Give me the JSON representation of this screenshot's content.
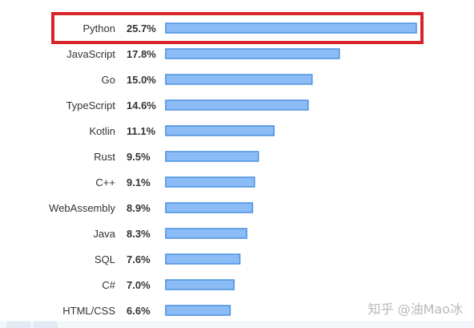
{
  "chart_data": {
    "type": "bar",
    "orientation": "horizontal",
    "categories": [
      "Python",
      "JavaScript",
      "Go",
      "TypeScript",
      "Kotlin",
      "Rust",
      "C++",
      "WebAssembly",
      "Java",
      "SQL",
      "C#",
      "HTML/CSS"
    ],
    "values": [
      25.7,
      17.8,
      15.0,
      14.6,
      11.1,
      9.5,
      9.1,
      8.9,
      8.3,
      7.6,
      7.0,
      6.6
    ],
    "value_labels": [
      "25.7%",
      "17.8%",
      "15.0%",
      "14.6%",
      "11.1%",
      "9.5%",
      "9.1%",
      "8.9%",
      "8.3%",
      "7.6%",
      "7.0%",
      "6.6%"
    ],
    "highlighted_category": "Python",
    "xlim": [
      0,
      25.7
    ],
    "grid": false,
    "legend": "none",
    "title": "",
    "xlabel": "",
    "ylabel": ""
  },
  "colors": {
    "bar_fill": "#8cbcf6",
    "bar_stroke": "#4a90e2",
    "highlight": "#d9252a",
    "text": "#333333"
  },
  "watermark": "知乎 @油Mao冰"
}
